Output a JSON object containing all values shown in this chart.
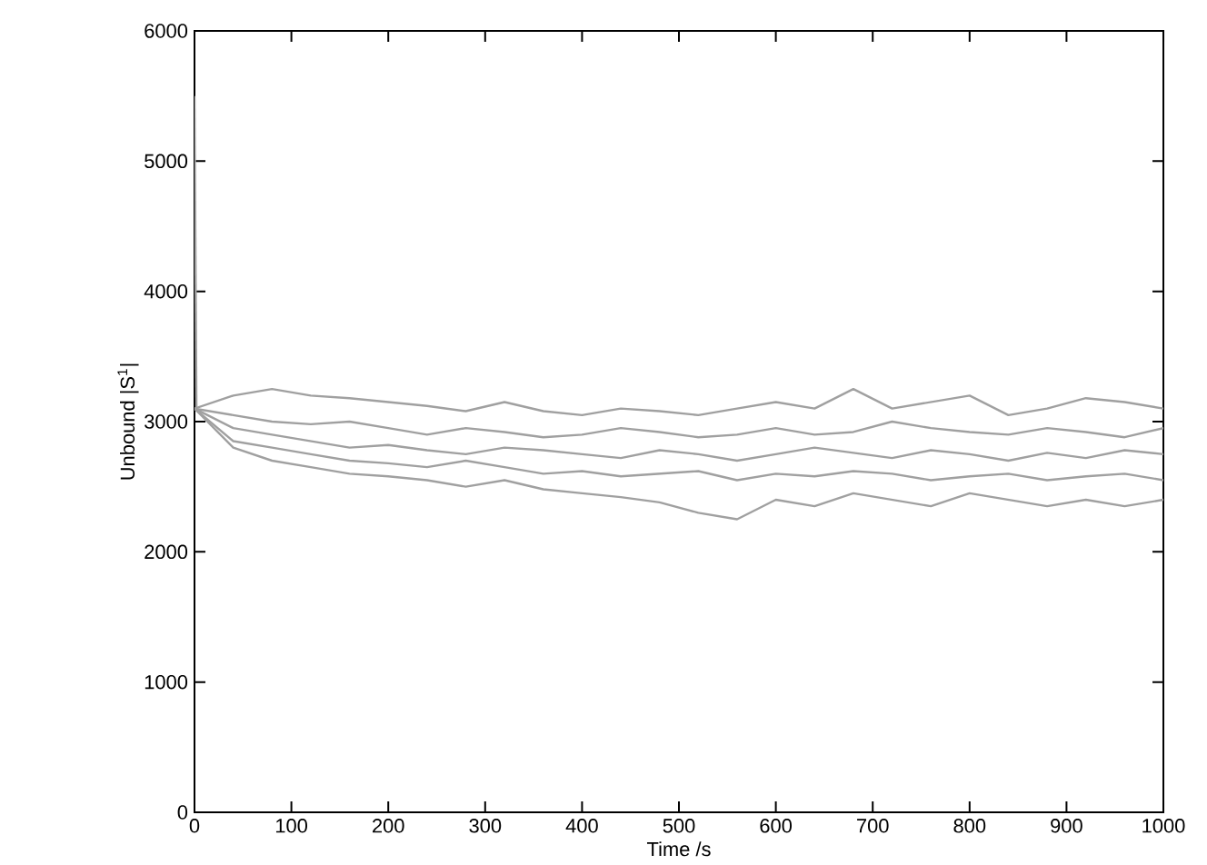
{
  "chart_data": {
    "type": "line",
    "xlabel": "Time /s",
    "ylabel": "Unbound |S$^{1}$|",
    "xlim": [
      0,
      1000
    ],
    "ylim": [
      0,
      6000
    ],
    "xticks": [
      0,
      100,
      200,
      300,
      400,
      500,
      600,
      700,
      800,
      900,
      1000
    ],
    "yticks": [
      0,
      1000,
      2000,
      3000,
      4000,
      5000,
      6000
    ],
    "marker": "none",
    "line_style": "solid",
    "x": [
      0,
      40,
      80,
      120,
      160,
      200,
      240,
      280,
      320,
      360,
      400,
      440,
      480,
      520,
      560,
      600,
      640,
      680,
      720,
      760,
      800,
      840,
      880,
      920,
      960,
      1000
    ],
    "series": [
      {
        "color": "#a0a0a0",
        "x": [
          0,
          2
        ],
        "values": [
          5500,
          3100
        ]
      },
      {
        "color": "#a0a0a0",
        "values": [
          3100,
          3200,
          3250,
          3200,
          3180,
          3150,
          3120,
          3080,
          3150,
          3080,
          3050,
          3100,
          3080,
          3050,
          3100,
          3150,
          3100,
          3250,
          3100,
          3150,
          3200,
          3050,
          3100,
          3180,
          3150,
          3100
        ]
      },
      {
        "color": "#a0a0a0",
        "values": [
          3100,
          3050,
          3000,
          2980,
          3000,
          2950,
          2900,
          2950,
          2920,
          2880,
          2900,
          2950,
          2920,
          2880,
          2900,
          2950,
          2900,
          2920,
          3000,
          2950,
          2920,
          2900,
          2950,
          2920,
          2880,
          2950
        ]
      },
      {
        "color": "#a0a0a0",
        "values": [
          3100,
          2950,
          2900,
          2850,
          2800,
          2820,
          2780,
          2750,
          2800,
          2780,
          2750,
          2720,
          2780,
          2750,
          2700,
          2750,
          2800,
          2760,
          2720,
          2780,
          2750,
          2700,
          2760,
          2720,
          2780,
          2750
        ]
      },
      {
        "color": "#a0a0a0",
        "values": [
          3100,
          2850,
          2800,
          2750,
          2700,
          2680,
          2650,
          2700,
          2650,
          2600,
          2620,
          2580,
          2600,
          2620,
          2550,
          2600,
          2580,
          2620,
          2600,
          2550,
          2580,
          2600,
          2550,
          2580,
          2600,
          2550
        ]
      },
      {
        "color": "#a0a0a0",
        "values": [
          3100,
          2800,
          2700,
          2650,
          2600,
          2580,
          2550,
          2500,
          2550,
          2480,
          2450,
          2420,
          2380,
          2300,
          2250,
          2400,
          2350,
          2450,
          2400,
          2350,
          2450,
          2400,
          2350,
          2400,
          2350,
          2400
        ]
      }
    ]
  }
}
